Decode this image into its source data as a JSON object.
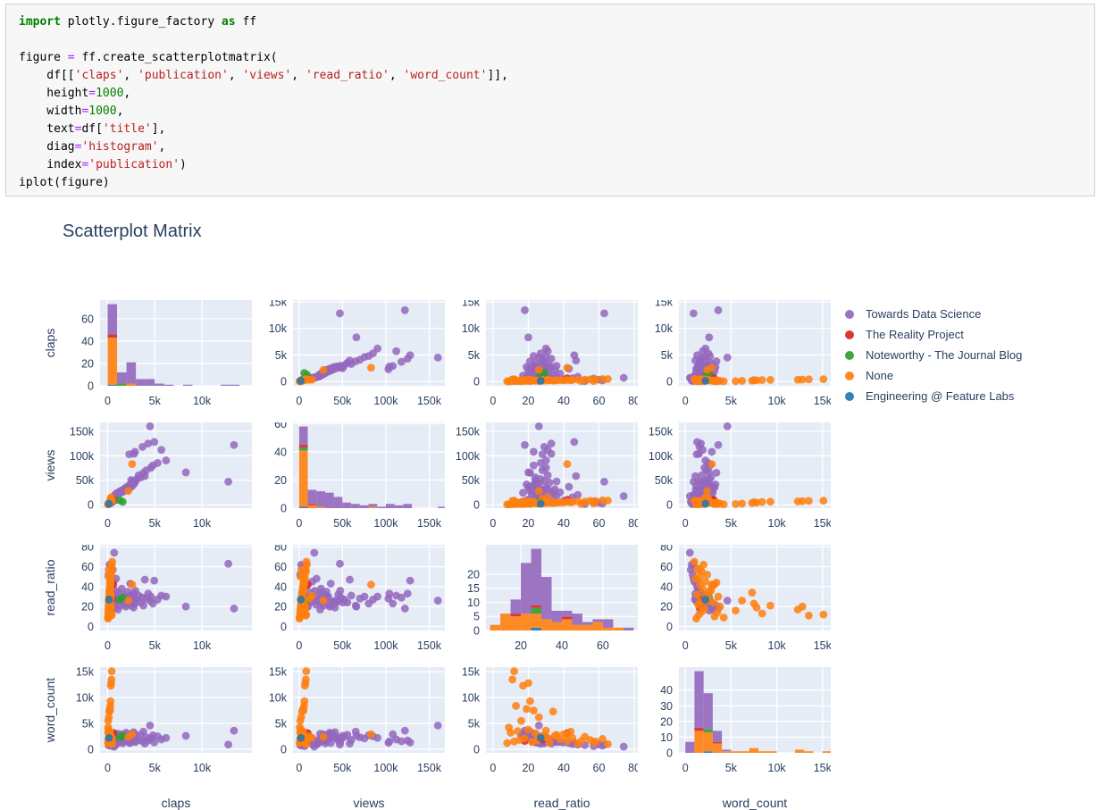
{
  "code_cell": {
    "lines": [
      [
        [
          "kw",
          "import"
        ],
        [
          "pl",
          " plotly.figure_factory "
        ],
        [
          "kw",
          "as"
        ],
        [
          "pl",
          " ff"
        ]
      ],
      [],
      [
        [
          "pl",
          "figure "
        ],
        [
          "op",
          "="
        ],
        [
          "pl",
          " ff.create_scatterplotmatrix("
        ]
      ],
      [
        [
          "pl",
          "    df[["
        ],
        [
          "st",
          "'claps'"
        ],
        [
          "pl",
          ", "
        ],
        [
          "st",
          "'publication'"
        ],
        [
          "pl",
          ", "
        ],
        [
          "st",
          "'views'"
        ],
        [
          "pl",
          ", "
        ],
        [
          "st",
          "'read_ratio'"
        ],
        [
          "pl",
          ", "
        ],
        [
          "st",
          "'word_count'"
        ],
        [
          "pl",
          "]],"
        ]
      ],
      [
        [
          "pl",
          "    height"
        ],
        [
          "op",
          "="
        ],
        [
          "nu",
          "1000"
        ],
        [
          "pl",
          ","
        ]
      ],
      [
        [
          "pl",
          "    width"
        ],
        [
          "op",
          "="
        ],
        [
          "nu",
          "1000"
        ],
        [
          "pl",
          ","
        ]
      ],
      [
        [
          "pl",
          "    text"
        ],
        [
          "op",
          "="
        ],
        [
          "pl",
          "df["
        ],
        [
          "st",
          "'title'"
        ],
        [
          "pl",
          "],"
        ]
      ],
      [
        [
          "pl",
          "    diag"
        ],
        [
          "op",
          "="
        ],
        [
          "st",
          "'histogram'"
        ],
        [
          "pl",
          ","
        ]
      ],
      [
        [
          "pl",
          "    index"
        ],
        [
          "op",
          "="
        ],
        [
          "st",
          "'publication'"
        ],
        [
          "pl",
          ")"
        ]
      ],
      [
        [
          "pl",
          "iplot(figure)"
        ]
      ]
    ]
  },
  "chart_data": {
    "type": "scatter",
    "subtype": "scatterplot-matrix",
    "title": "Scatterplot Matrix",
    "diag": "histogram",
    "variables": [
      "claps",
      "views",
      "read_ratio",
      "word_count"
    ],
    "plot_bg": "#e5ecf6",
    "grid_color": "#ffffff",
    "text_color": "#2a3f5f",
    "groups": [
      {
        "name": "Towards Data Science",
        "color": "#9467bd"
      },
      {
        "name": "The Reality Project",
        "color": "#d62728"
      },
      {
        "name": "Noteworthy - The Journal Blog",
        "color": "#2ca02c"
      },
      {
        "name": "None",
        "color": "#ff7f0e"
      },
      {
        "name": "Engineering @ Feature Labs",
        "color": "#1f77b4"
      }
    ],
    "axes": {
      "claps": {
        "range": [
          -800,
          15300
        ],
        "xticks": [
          [
            0,
            "0"
          ],
          [
            5000,
            "5k"
          ],
          [
            10000,
            "10k"
          ]
        ],
        "yticks": [
          [
            0,
            "0"
          ],
          [
            5000,
            "5k"
          ],
          [
            10000,
            "10k"
          ],
          [
            15000,
            "15k"
          ]
        ],
        "hist": {
          "bin": 1000,
          "yticks": [
            [
              0,
              "0"
            ],
            [
              20,
              "20"
            ],
            [
              40,
              "40"
            ],
            [
              60,
              "60"
            ]
          ]
        }
      },
      "views": {
        "range": [
          -7000,
          168000
        ],
        "xticks": [
          [
            0,
            "0"
          ],
          [
            50000,
            "50k"
          ],
          [
            100000,
            "100k"
          ],
          [
            150000,
            "150k"
          ]
        ],
        "yticks": [
          [
            0,
            "0"
          ],
          [
            50000,
            "50k"
          ],
          [
            100000,
            "100k"
          ],
          [
            150000,
            "150k"
          ]
        ],
        "hist": {
          "bin": 10000,
          "yticks": [
            [
              0,
              "0"
            ],
            [
              20,
              "20"
            ],
            [
              40,
              "40"
            ],
            [
              60,
              "60"
            ]
          ]
        }
      },
      "read_ratio": {
        "range": [
          -4,
          82
        ],
        "xticks": [
          [
            0,
            "0"
          ],
          [
            20,
            "20"
          ],
          [
            40,
            "40"
          ],
          [
            60,
            "60"
          ],
          [
            80,
            "80"
          ]
        ],
        "yticks": [
          [
            0,
            "0"
          ],
          [
            20,
            "20"
          ],
          [
            40,
            "40"
          ],
          [
            60,
            "60"
          ],
          [
            80,
            "80"
          ]
        ],
        "hist": {
          "bin": 5,
          "range": [
            3,
            77
          ],
          "xticks": [
            [
              20,
              "20"
            ],
            [
              40,
              "40"
            ],
            [
              60,
              "60"
            ]
          ],
          "yticks": [
            [
              0,
              "0"
            ],
            [
              5,
              "5"
            ],
            [
              10,
              "10"
            ],
            [
              15,
              "15"
            ],
            [
              20,
              "20"
            ]
          ]
        }
      },
      "word_count": {
        "range": [
          -700,
          15900
        ],
        "xticks": [
          [
            0,
            "0"
          ],
          [
            5000,
            "5k"
          ],
          [
            10000,
            "10k"
          ],
          [
            15000,
            "15k"
          ]
        ],
        "yticks": [
          [
            0,
            "0"
          ],
          [
            5000,
            "5k"
          ],
          [
            10000,
            "10k"
          ],
          [
            15000,
            "15k"
          ]
        ],
        "hist": {
          "bin": 1000,
          "yticks": [
            [
              0,
              "0"
            ],
            [
              10,
              "10"
            ],
            [
              20,
              "20"
            ],
            [
              30,
              "30"
            ],
            [
              40,
              "40"
            ]
          ]
        }
      }
    },
    "points_format": [
      "claps",
      "views",
      "read_ratio",
      "word_count",
      "group_index"
    ],
    "points": [
      [
        120,
        2000,
        21,
        1950,
        0
      ],
      [
        180,
        3200,
        28,
        1400,
        0
      ],
      [
        220,
        5000,
        16,
        2600,
        0
      ],
      [
        260,
        4100,
        33,
        1100,
        0
      ],
      [
        300,
        7200,
        25,
        1250,
        0
      ],
      [
        340,
        6100,
        31,
        1700,
        0
      ],
      [
        380,
        9300,
        22,
        2400,
        0
      ],
      [
        420,
        8200,
        40,
        1300,
        0
      ],
      [
        460,
        11000,
        29,
        1900,
        0
      ],
      [
        500,
        10200,
        20,
        2800,
        0
      ],
      [
        540,
        13400,
        34,
        1600,
        0
      ],
      [
        580,
        12100,
        24,
        1350,
        0
      ],
      [
        620,
        15300,
        45,
        1000,
        0
      ],
      [
        660,
        14200,
        26,
        2100,
        0
      ],
      [
        700,
        17500,
        74,
        500,
        0
      ],
      [
        740,
        16300,
        30,
        1800,
        0
      ],
      [
        780,
        19400,
        22,
        1650,
        0
      ],
      [
        820,
        18200,
        36,
        1500,
        0
      ],
      [
        860,
        21300,
        27,
        1050,
        0
      ],
      [
        900,
        20100,
        48,
        900,
        0
      ],
      [
        940,
        23200,
        32,
        1900,
        0
      ],
      [
        100,
        1200,
        52,
        800,
        0
      ],
      [
        200,
        2400,
        62,
        700,
        0
      ],
      [
        350,
        3600,
        60,
        900,
        0
      ],
      [
        550,
        6400,
        57,
        600,
        0
      ],
      [
        750,
        8600,
        19,
        3100,
        0
      ],
      [
        950,
        22400,
        25,
        1450,
        0
      ],
      [
        1100,
        24300,
        17,
        3000,
        0
      ],
      [
        1200,
        26100,
        34,
        1700,
        0
      ],
      [
        1300,
        23400,
        27,
        1550,
        0
      ],
      [
        1400,
        28200,
        21,
        2900,
        0
      ],
      [
        1500,
        25300,
        38,
        1400,
        0
      ],
      [
        1600,
        30400,
        29,
        1150,
        0
      ],
      [
        1700,
        27200,
        23,
        2600,
        0
      ],
      [
        1800,
        32300,
        31,
        1800,
        0
      ],
      [
        1900,
        29400,
        26,
        1850,
        0
      ],
      [
        1950,
        35200,
        20,
        3200,
        0
      ],
      [
        2050,
        30600,
        28,
        1750,
        0
      ],
      [
        2100,
        34300,
        22,
        2800,
        0
      ],
      [
        2150,
        31500,
        35,
        1600,
        0
      ],
      [
        2200,
        38400,
        25,
        2400,
        0
      ],
      [
        2300,
        33600,
        30,
        1900,
        0
      ],
      [
        2350,
        40200,
        23,
        2700,
        0
      ],
      [
        2400,
        36500,
        43,
        1200,
        0
      ],
      [
        2500,
        42300,
        26,
        2200,
        0
      ],
      [
        2550,
        37400,
        21,
        3000,
        0
      ],
      [
        2600,
        45200,
        32,
        1700,
        0
      ],
      [
        2650,
        39600,
        24,
        2500,
        0
      ],
      [
        2700,
        48300,
        29,
        2000,
        0
      ],
      [
        2750,
        41400,
        19,
        3300,
        0
      ],
      [
        2800,
        104000,
        33,
        1500,
        0
      ],
      [
        2850,
        44600,
        25,
        2300,
        0
      ],
      [
        2900,
        108000,
        23,
        2900,
        0
      ],
      [
        2950,
        47400,
        36,
        1400,
        0
      ],
      [
        2300,
        103000,
        28,
        1250,
        0
      ],
      [
        2500,
        50300,
        24,
        2600,
        0
      ],
      [
        3100,
        52400,
        27,
        2400,
        0
      ],
      [
        3300,
        60200,
        31,
        1800,
        0
      ],
      [
        3500,
        55600,
        24,
        2800,
        0
      ],
      [
        3700,
        118000,
        29,
        1550,
        0
      ],
      [
        3800,
        65300,
        21,
        3400,
        0
      ],
      [
        3950,
        58400,
        47,
        1100,
        0
      ],
      [
        4100,
        70200,
        28,
        2300,
        0
      ],
      [
        4300,
        125000,
        33,
        1700,
        0
      ],
      [
        4500,
        160000,
        26,
        4600,
        0
      ],
      [
        4600,
        75400,
        30,
        2100,
        0
      ],
      [
        4800,
        80300,
        23,
        2700,
        0
      ],
      [
        4950,
        128000,
        46,
        1300,
        0
      ],
      [
        5300,
        85200,
        27,
        2500,
        0
      ],
      [
        5700,
        112000,
        31,
        1900,
        0
      ],
      [
        6200,
        90400,
        30,
        2200,
        0
      ],
      [
        12800,
        47000,
        63,
        900,
        0
      ],
      [
        8300,
        66000,
        20,
        2600,
        0
      ],
      [
        13400,
        122000,
        18,
        3600,
        0
      ],
      [
        300,
        4000,
        18,
        1600,
        1
      ],
      [
        450,
        7000,
        28,
        1900,
        1
      ],
      [
        600,
        10000,
        42,
        3100,
        1
      ],
      [
        1300,
        9000,
        27,
        2300,
        2
      ],
      [
        1600,
        6000,
        29,
        2600,
        2
      ],
      [
        50,
        500,
        8,
        1200,
        3
      ],
      [
        80,
        1000,
        12,
        1500,
        3
      ],
      [
        100,
        2000,
        15,
        1800,
        3
      ],
      [
        120,
        1500,
        18,
        2100,
        3
      ],
      [
        150,
        3000,
        22,
        1400,
        3
      ],
      [
        180,
        2500,
        25,
        1700,
        3
      ],
      [
        200,
        4000,
        28,
        2300,
        3
      ],
      [
        220,
        3500,
        32,
        1300,
        3
      ],
      [
        250,
        5000,
        35,
        2600,
        3
      ],
      [
        280,
        4500,
        38,
        1900,
        3
      ],
      [
        300,
        6000,
        42,
        1600,
        3
      ],
      [
        320,
        5500,
        45,
        2200,
        3
      ],
      [
        350,
        7000,
        48,
        1100,
        3
      ],
      [
        380,
        6500,
        52,
        2400,
        3
      ],
      [
        400,
        8000,
        55,
        1800,
        3
      ],
      [
        420,
        7500,
        58,
        1500,
        3
      ],
      [
        450,
        9000,
        62,
        2000,
        3
      ],
      [
        480,
        8500,
        65,
        1000,
        3
      ],
      [
        60,
        1200,
        10,
        3200,
        3
      ],
      [
        90,
        1800,
        14,
        3500,
        3
      ],
      [
        110,
        2200,
        20,
        3800,
        3
      ],
      [
        140,
        2800,
        24,
        3100,
        3
      ],
      [
        160,
        3200,
        30,
        3600,
        3
      ],
      [
        190,
        3800,
        36,
        2800,
        3
      ],
      [
        210,
        4200,
        40,
        2900,
        3
      ],
      [
        240,
        4800,
        44,
        3400,
        3
      ],
      [
        70,
        1400,
        16,
        5500,
        3
      ],
      [
        130,
        2400,
        26,
        6200,
        3
      ],
      [
        170,
        3400,
        34,
        7300,
        3
      ],
      [
        230,
        4400,
        19,
        7800,
        3
      ],
      [
        260,
        5200,
        23,
        7500,
        3
      ],
      [
        290,
        5800,
        13,
        8400,
        3
      ],
      [
        310,
        6200,
        21,
        9300,
        3
      ],
      [
        340,
        6800,
        17,
        12300,
        3
      ],
      [
        370,
        7200,
        20,
        12800,
        3
      ],
      [
        410,
        7800,
        11,
        13500,
        3
      ],
      [
        440,
        8200,
        12,
        15100,
        3
      ],
      [
        55,
        800,
        9,
        4200,
        3
      ],
      [
        85,
        1600,
        50,
        1600,
        3
      ],
      [
        115,
        2600,
        57,
        1300,
        3
      ],
      [
        330,
        12000,
        28,
        2500,
        3
      ],
      [
        360,
        15000,
        31,
        2200,
        3
      ],
      [
        2600,
        83000,
        42,
        2900,
        3
      ],
      [
        2200,
        28000,
        26,
        2400,
        3
      ],
      [
        150,
        2000,
        27,
        2200,
        4
      ]
    ]
  }
}
